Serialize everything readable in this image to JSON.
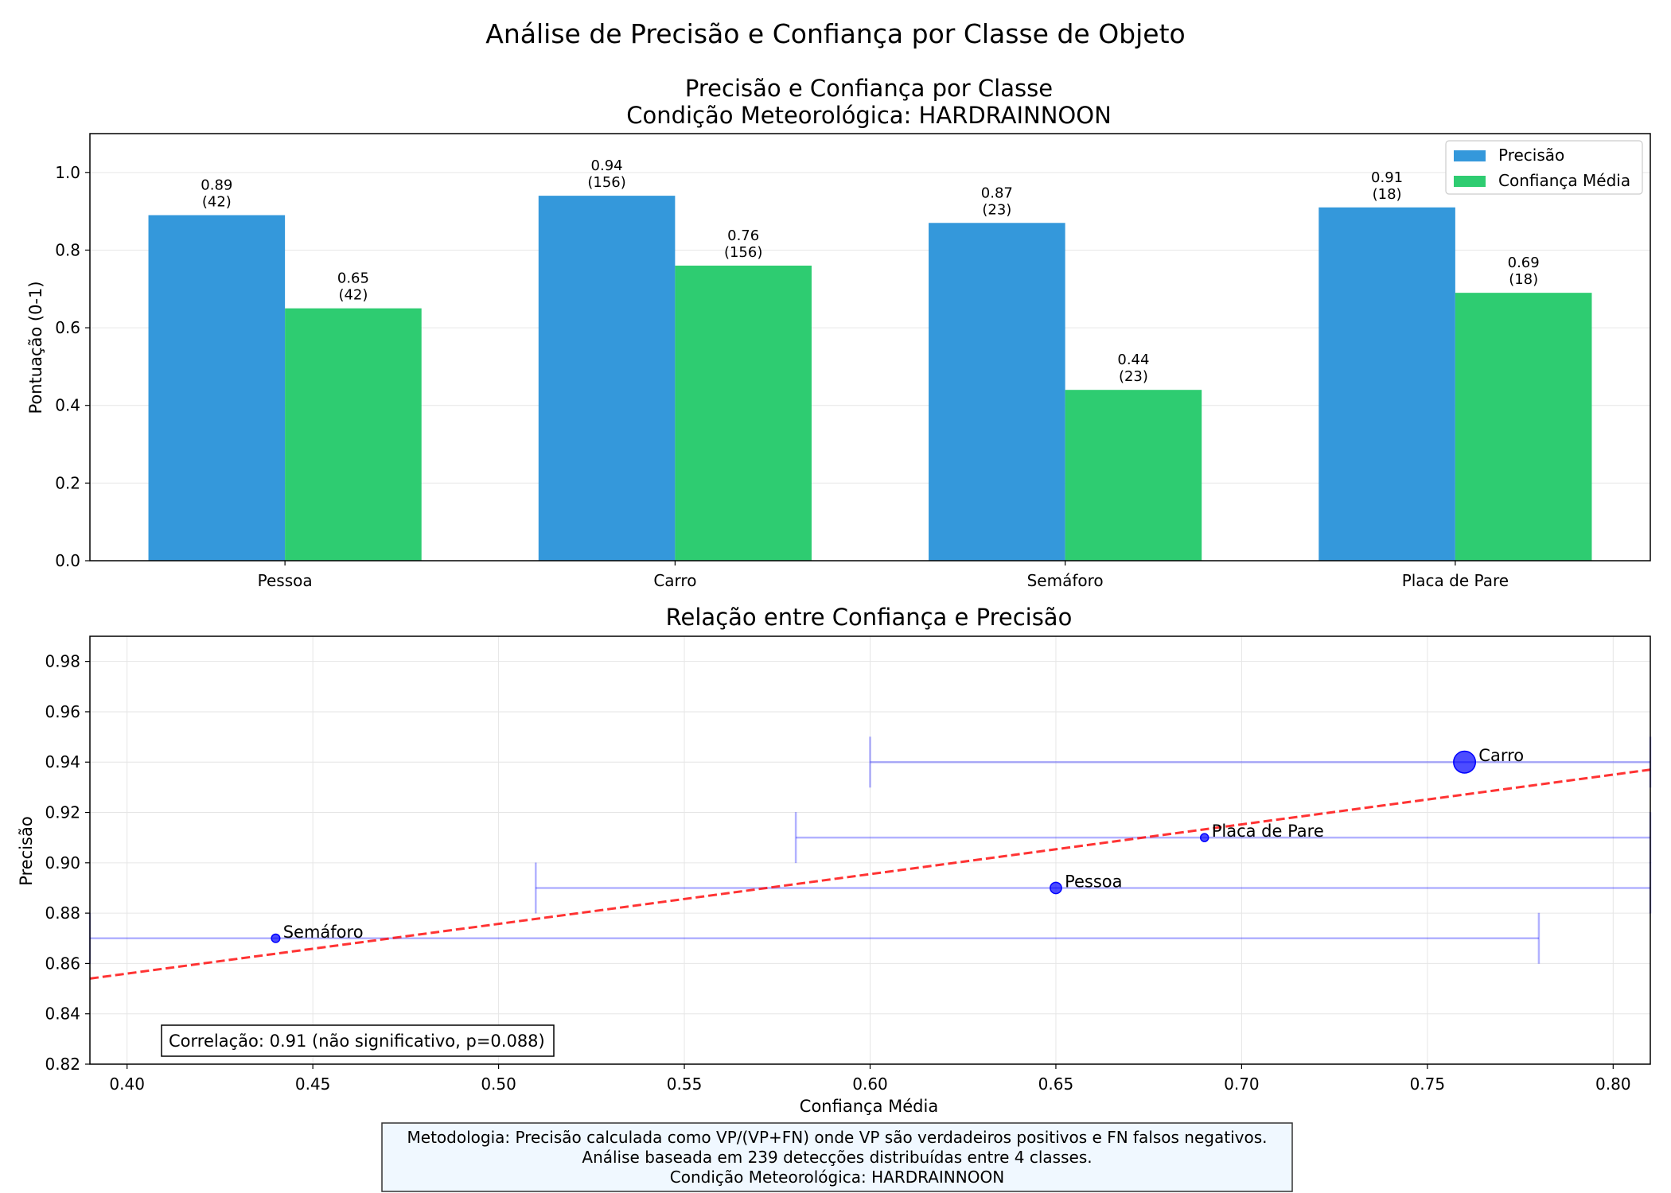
{
  "suptitle": "Análise de Precisão e Confiança por Classe de Objeto",
  "footer_lines": [
    "Metodologia: Precisão calculada como VP/(VP+FN) onde VP são verdadeiros positivos e FN falsos negativos.",
    "Análise baseada em 239 detecções distribuídas entre 4 classes.",
    "Condição Meteorológica: HARDRAINNOON"
  ],
  "colors": {
    "precision": "#3498db",
    "confidence": "#2ecc71",
    "points": "#0000ff",
    "trend": "#ff0000",
    "grid": "#e6e6e6",
    "footer_bg": "#f0f8ff"
  },
  "chart_data": [
    {
      "type": "bar",
      "title": "Precisão e Confiança por Classe",
      "subtitle": "Condição Meteorológica: HARDRAINNOON",
      "xlabel": "",
      "ylabel": "Pontuação (0-1)",
      "categories": [
        "Pessoa",
        "Carro",
        "Semáforo",
        "Placa de Pare"
      ],
      "series": [
        {
          "name": "Precisão",
          "values": [
            0.89,
            0.94,
            0.87,
            0.91
          ],
          "counts": [
            42,
            156,
            23,
            18
          ]
        },
        {
          "name": "Confiança Média",
          "values": [
            0.65,
            0.76,
            0.44,
            0.69
          ],
          "counts": [
            42,
            156,
            23,
            18
          ]
        }
      ],
      "ylim": [
        0,
        1.1
      ],
      "yticks": [
        "0.0",
        "0.2",
        "0.4",
        "0.6",
        "0.8",
        "1.0"
      ],
      "grid": true,
      "legend": "top-right"
    },
    {
      "type": "scatter",
      "title": "Relação entre Confiança e Precisão",
      "xlabel": "Confiança Média",
      "ylabel": "Precisão",
      "points": [
        {
          "label": "Pessoa",
          "x": 0.65,
          "y": 0.89,
          "xerr_low": 0.51,
          "xerr_high": 0.81,
          "n": 42
        },
        {
          "label": "Carro",
          "x": 0.76,
          "y": 0.94,
          "xerr_low": 0.6,
          "xerr_high": 0.81,
          "n": 156
        },
        {
          "label": "Semáforo",
          "x": 0.44,
          "y": 0.87,
          "xerr_low": 0.39,
          "xerr_high": 0.78,
          "n": 23
        },
        {
          "label": "Placa de Pare",
          "x": 0.69,
          "y": 0.91,
          "xerr_low": 0.58,
          "xerr_high": 0.81,
          "n": 18
        }
      ],
      "trendline": {
        "x0": 0.39,
        "y0": 0.854,
        "x1": 0.81,
        "y1": 0.937
      },
      "xlim": [
        0.39,
        0.81
      ],
      "ylim": [
        0.82,
        0.99
      ],
      "xticks": [
        "0.40",
        "0.45",
        "0.50",
        "0.55",
        "0.60",
        "0.65",
        "0.70",
        "0.75",
        "0.80"
      ],
      "yticks": [
        "0.82",
        "0.84",
        "0.86",
        "0.88",
        "0.90",
        "0.92",
        "0.94",
        "0.96",
        "0.98"
      ],
      "annotation": "Correlação: 0.91 (não significativo, p=0.088)",
      "grid": true
    }
  ]
}
